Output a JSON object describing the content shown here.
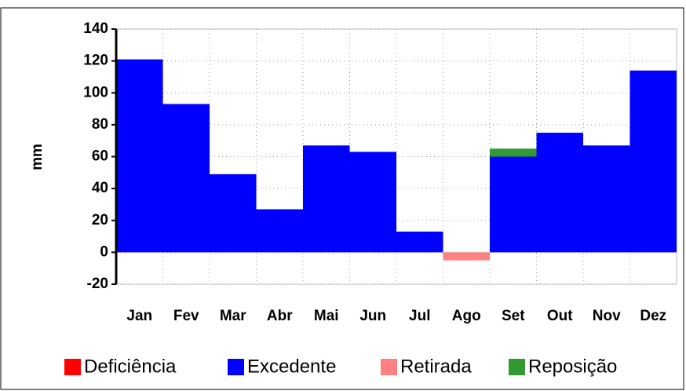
{
  "chart_data": {
    "type": "bar",
    "stacked": true,
    "y_label": "mm",
    "categories": [
      "Jan",
      "Fev",
      "Mar",
      "Abr",
      "Mai",
      "Jun",
      "Jul",
      "Ago",
      "Set",
      "Out",
      "Nov",
      "Dez"
    ],
    "series": [
      {
        "name": "Deficiência",
        "color": "#ff0000",
        "values": [
          0,
          0,
          0,
          0,
          0,
          0,
          0,
          0,
          0,
          0,
          0,
          0
        ]
      },
      {
        "name": "Excedente",
        "color": "#0000ff",
        "values": [
          121,
          93,
          49,
          27,
          67,
          63,
          13,
          0,
          60,
          75,
          67,
          114
        ]
      },
      {
        "name": "Retirada",
        "color": "#ff8080",
        "values": [
          0,
          0,
          0,
          0,
          0,
          0,
          0,
          -5,
          0,
          0,
          0,
          0
        ]
      },
      {
        "name": "Reposição",
        "color": "#339933",
        "values": [
          0,
          0,
          0,
          0,
          0,
          0,
          0,
          0,
          5,
          0,
          0,
          0
        ]
      }
    ],
    "ylim": [
      -20,
      140
    ],
    "yticks": [
      -20,
      0,
      20,
      40,
      60,
      80,
      100,
      120,
      140
    ],
    "grid": true,
    "legend": "bottom"
  }
}
